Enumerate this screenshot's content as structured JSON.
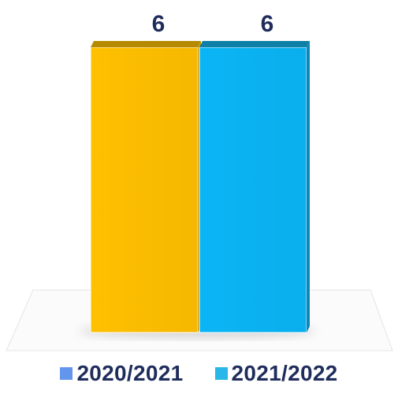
{
  "chart_data": {
    "type": "bar",
    "categories": [
      ""
    ],
    "series": [
      {
        "name": "2020/2021",
        "values": [
          6
        ],
        "color": "#FFC000",
        "legend_color": "#6495ED"
      },
      {
        "name": "2021/2022",
        "values": [
          6
        ],
        "color": "#0BB5F5",
        "legend_color": "#29B6E8"
      }
    ],
    "ylim": [
      0,
      6
    ],
    "style": "3d",
    "grid": false,
    "legend": "bottom",
    "show_data_labels": true,
    "title": "",
    "xlabel": "",
    "ylabel": ""
  }
}
